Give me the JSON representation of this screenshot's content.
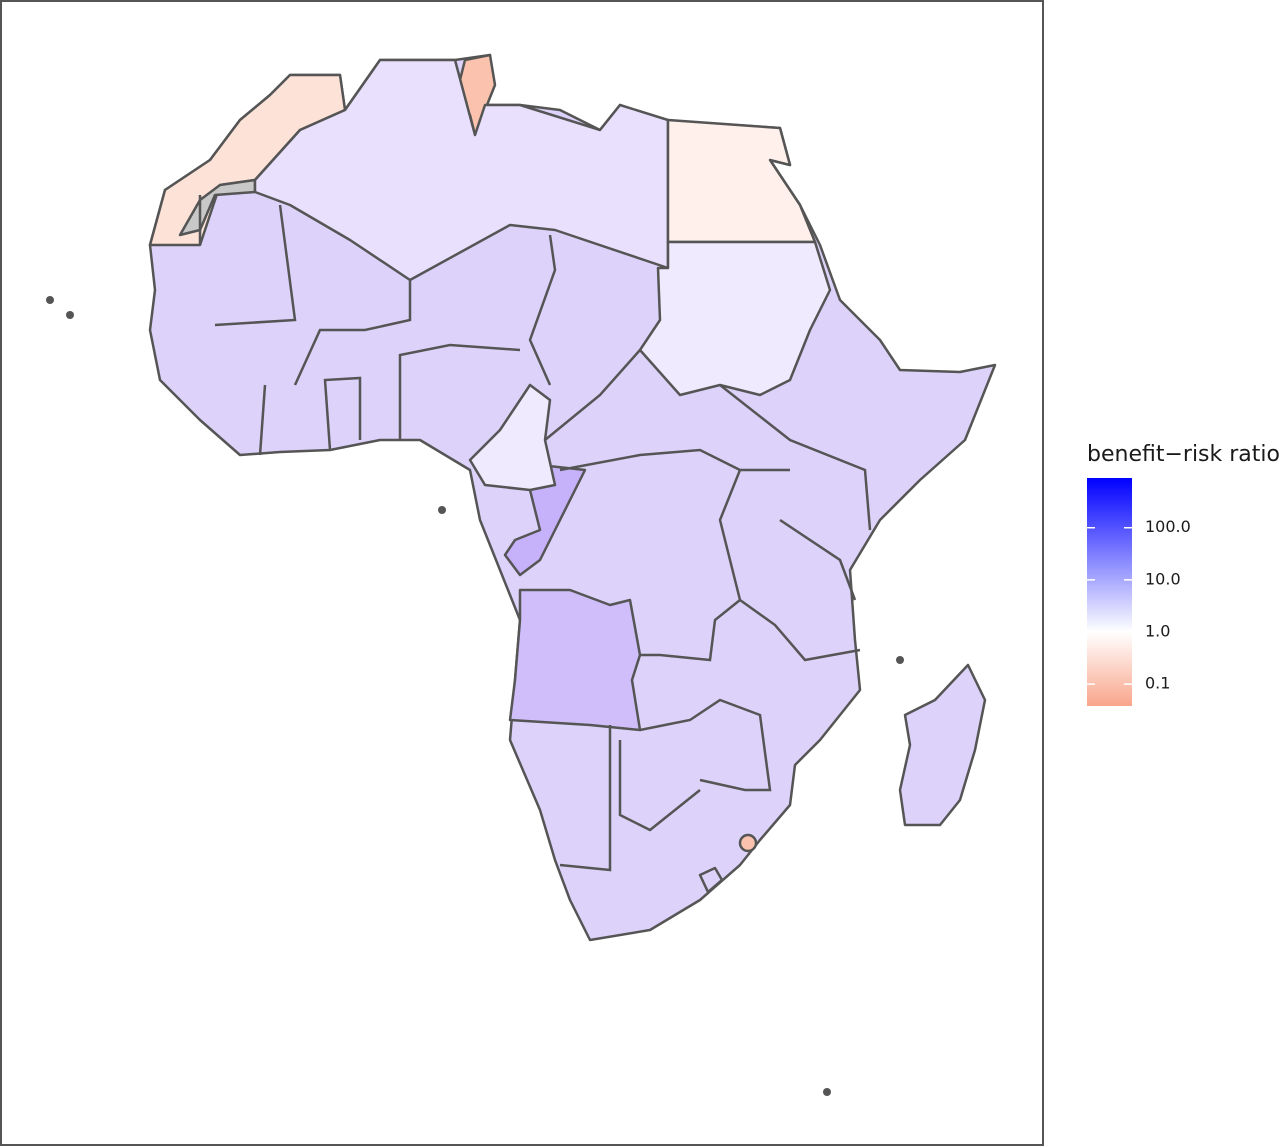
{
  "legend": {
    "title": "benefit−risk ratio",
    "scale": "log",
    "limits": [
      0.038,
      900
    ],
    "colors": {
      "low": "#f9a58b",
      "mid": "#ffffff",
      "high": "#0000ff"
    },
    "ticks": [
      0.1,
      {
        "value": 1,
        "label": "1.0"
      },
      {
        "value": 10,
        "label": "10.0"
      },
      {
        "value": 100,
        "label": "100.0"
      }
    ]
  }
}
